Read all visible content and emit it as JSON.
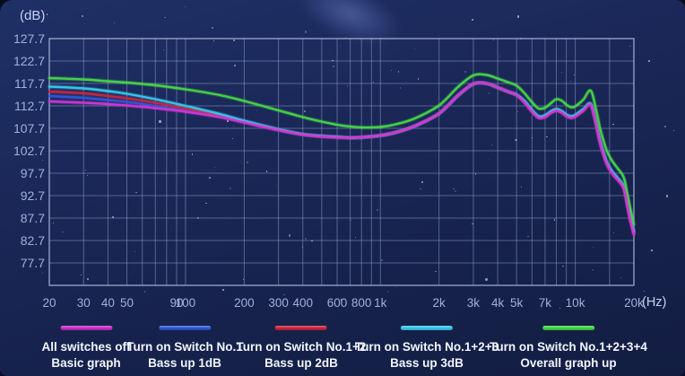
{
  "unit_labels": {
    "y": "(dB)",
    "x": "(Hz)"
  },
  "legend": {
    "items": [
      {
        "color": "#c32ac3",
        "line1": "All switches off",
        "line2": "Basic graph"
      },
      {
        "color": "#2b55d2",
        "line1": "Turn on Switch No.1",
        "line2": "Bass up 1dB"
      },
      {
        "color": "#c9203a",
        "line1": "Turn on Switch No.1+2",
        "line2": "Bass up 2dB"
      },
      {
        "color": "#31c5e8",
        "line1": "Turn on Switch No.1+2+3",
        "line2": "Bass up 3dB"
      },
      {
        "color": "#3ed23c",
        "line1": "Turn on Switch No.1+2+3+4",
        "line2": "Overall graph up"
      }
    ]
  },
  "chart_data": {
    "type": "line",
    "x_scale": "log",
    "x_unit": "Hz",
    "y_unit": "dB",
    "x_range": [
      20,
      20000
    ],
    "y_range": [
      72.7,
      127.7
    ],
    "grid": true,
    "legend_position": "bottom",
    "y_ticks": [
      127.7,
      122.7,
      117.7,
      112.7,
      107.7,
      102.7,
      97.7,
      92.7,
      87.7,
      82.7,
      77.7
    ],
    "y_tick_labels": [
      "127.7",
      "122.7",
      "117.7",
      "112.7",
      "107.7",
      "102.7",
      "97.7",
      "92.7",
      "87.7",
      "82.7",
      "77.7"
    ],
    "x_ticks": [
      {
        "f": 20,
        "label": "20"
      },
      {
        "f": 30,
        "label": "30"
      },
      {
        "f": 40,
        "label": "40"
      },
      {
        "f": 50,
        "label": "50"
      },
      {
        "f": 90,
        "label": "90"
      },
      {
        "f": 100,
        "label": "100"
      },
      {
        "f": 200,
        "label": "200"
      },
      {
        "f": 300,
        "label": "300"
      },
      {
        "f": 400,
        "label": "400"
      },
      {
        "f": 600,
        "label": "600"
      },
      {
        "f": 800,
        "label": "800"
      },
      {
        "f": 1000,
        "label": "1k"
      },
      {
        "f": 2000,
        "label": "2k"
      },
      {
        "f": 3000,
        "label": "3k"
      },
      {
        "f": 4000,
        "label": "4k"
      },
      {
        "f": 5000,
        "label": "5k"
      },
      {
        "f": 7000,
        "label": "7k"
      },
      {
        "f": 10000,
        "label": "10k"
      },
      {
        "f": 20000,
        "label": "20k"
      }
    ],
    "grid_frequencies": [
      20,
      30,
      40,
      50,
      60,
      70,
      80,
      90,
      100,
      200,
      300,
      400,
      500,
      600,
      700,
      800,
      900,
      1000,
      2000,
      3000,
      4000,
      5000,
      6000,
      7000,
      8000,
      9000,
      10000,
      15000,
      20000
    ],
    "x": [
      20,
      30,
      40,
      50,
      70,
      100,
      150,
      200,
      300,
      400,
      500,
      600,
      700,
      800,
      1000,
      1200,
      1500,
      2000,
      2500,
      3000,
      3500,
      4000,
      4500,
      5000,
      5500,
      6000,
      6500,
      7000,
      7500,
      8000,
      8500,
      9000,
      9500,
      10000,
      11000,
      12000,
      12800,
      13500,
      14500,
      15500,
      16500,
      17500,
      18000,
      18500,
      19200,
      20000
    ],
    "series": [
      {
        "name": "All switches off (Basic graph)",
        "color": "#d335d3",
        "values": [
          113.7,
          113.4,
          113.1,
          112.8,
          112.2,
          111.4,
          110.2,
          109.0,
          107.3,
          106.3,
          105.9,
          105.7,
          105.6,
          105.7,
          106.1,
          106.8,
          108.2,
          111.0,
          115.0,
          117.6,
          117.7,
          116.8,
          115.9,
          115.1,
          113.4,
          111.4,
          110.0,
          110.2,
          111.1,
          111.6,
          111.2,
          110.4,
          110.0,
          110.3,
          111.6,
          112.9,
          108.5,
          104.0,
          99.8,
          97.6,
          96.2,
          94.8,
          93.2,
          90.5,
          87.0,
          84.0
        ]
      },
      {
        "name": "Turn on Switch No.1 (Bass up 1dB)",
        "color": "#3057d6",
        "values": [
          114.9,
          114.5,
          114.0,
          113.6,
          112.7,
          111.7,
          110.3,
          109.1,
          107.3,
          106.3,
          105.9,
          105.7,
          105.6,
          105.7,
          106.1,
          106.8,
          108.2,
          111.0,
          115.0,
          117.6,
          117.7,
          116.8,
          115.9,
          115.1,
          113.6,
          111.6,
          110.2,
          110.4,
          111.3,
          111.8,
          111.4,
          110.6,
          110.2,
          110.5,
          111.8,
          113.0,
          108.8,
          104.3,
          100.1,
          97.9,
          96.5,
          95.1,
          93.6,
          91.0,
          87.6,
          84.5
        ]
      },
      {
        "name": "Turn on Switch No.1+2 (Bass up 2dB)",
        "color": "#c92540",
        "values": [
          115.9,
          115.5,
          114.9,
          114.4,
          113.4,
          112.1,
          110.6,
          109.2,
          107.4,
          106.3,
          105.9,
          105.7,
          105.6,
          105.7,
          106.1,
          106.8,
          108.2,
          111.0,
          115.0,
          117.6,
          117.7,
          116.8,
          115.9,
          115.1,
          113.5,
          111.5,
          110.1,
          110.3,
          111.2,
          111.7,
          111.3,
          110.5,
          110.1,
          110.4,
          111.7,
          112.9,
          108.6,
          104.1,
          99.9,
          97.7,
          96.3,
          94.9,
          93.4,
          90.7,
          87.3,
          84.2
        ]
      },
      {
        "name": "Turn on Switch No.1+2+3 (Bass up 3dB)",
        "color": "#35c8ea",
        "values": [
          117.0,
          116.6,
          116.0,
          115.4,
          114.2,
          112.7,
          110.9,
          109.4,
          107.5,
          106.4,
          106.0,
          105.8,
          105.6,
          105.7,
          106.1,
          106.8,
          108.2,
          111.0,
          115.0,
          117.6,
          117.7,
          116.8,
          115.9,
          115.2,
          113.8,
          111.8,
          110.4,
          110.6,
          111.5,
          112.0,
          111.6,
          110.8,
          110.4,
          110.7,
          112.0,
          113.2,
          109.0,
          104.5,
          100.3,
          98.1,
          96.7,
          95.3,
          93.8,
          91.2,
          87.8,
          84.7
        ]
      },
      {
        "name": "Turn on Switch No.1+2+3+4 (Overall graph up)",
        "color": "#46d546",
        "values": [
          118.9,
          118.6,
          118.2,
          117.9,
          117.3,
          116.4,
          115.1,
          113.8,
          111.7,
          110.2,
          109.2,
          108.5,
          108.1,
          107.9,
          108.0,
          108.6,
          109.9,
          112.8,
          116.9,
          119.5,
          119.6,
          118.8,
          118.0,
          117.2,
          115.5,
          113.5,
          112.1,
          112.3,
          113.3,
          114.2,
          113.9,
          113.0,
          112.4,
          112.6,
          114.1,
          116.1,
          111.8,
          107.2,
          102.8,
          100.4,
          98.8,
          97.3,
          95.8,
          93.2,
          89.8,
          86.3
        ]
      }
    ]
  }
}
